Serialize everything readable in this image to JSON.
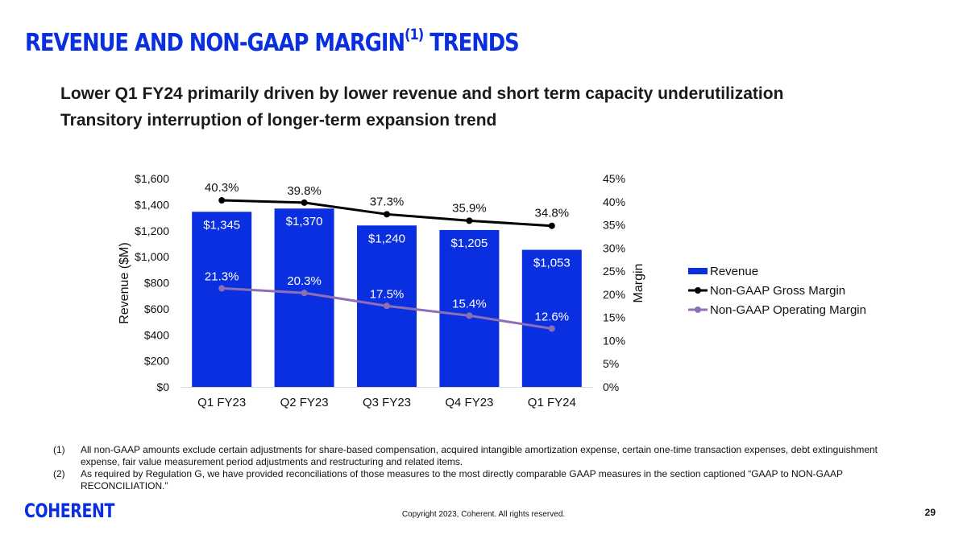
{
  "slide": {
    "title_main": "REVENUE AND NON-GAAP MARGIN",
    "title_sup": "(1)",
    "title_end": " TRENDS",
    "subtitles": [
      "Lower Q1 FY24 primarily driven by lower revenue and short term capacity underutilization",
      "Transitory interruption of longer-term expansion trend"
    ],
    "footnotes": [
      {
        "num": "(1)",
        "text": "All non-GAAP amounts exclude certain adjustments for share-based compensation, acquired intangible amortization expense, certain one-time transaction expenses, debt extinguishment expense, fair value measurement period adjustments and restructuring and related items."
      },
      {
        "num": "(2)",
        "text": "As required by Regulation G, we have provided reconciliations of those measures to the most directly comparable GAAP measures in the section captioned “GAAP to NON-GAAP RECONCILIATION.”"
      }
    ],
    "logo_text": "COHERENT",
    "copyright": "Copyright 2023, Coherent. All rights reserved.",
    "page_number": "29",
    "brand_color": "#0A2FE0"
  },
  "chart_data": {
    "type": "bar",
    "categories": [
      "Q1 FY23",
      "Q2 FY23",
      "Q3 FY23",
      "Q4 FY23",
      "Q1 FY24"
    ],
    "series": [
      {
        "name": "Revenue",
        "type": "bar",
        "axis": "left",
        "values": [
          1345,
          1370,
          1240,
          1205,
          1053
        ],
        "labels": [
          "$1,345",
          "$1,370",
          "$1,240",
          "$1,205",
          "$1,053"
        ],
        "color": "#0A2FE0"
      },
      {
        "name": "Non-GAAP Gross Margin",
        "type": "line",
        "axis": "right",
        "values": [
          40.3,
          39.8,
          37.3,
          35.9,
          34.8
        ],
        "labels": [
          "40.3%",
          "39.8%",
          "37.3%",
          "35.9%",
          "34.8%"
        ],
        "color": "#000000"
      },
      {
        "name": "Non-GAAP Operating Margin",
        "type": "line",
        "axis": "right",
        "values": [
          21.3,
          20.3,
          17.5,
          15.4,
          12.6
        ],
        "labels": [
          "21.3%",
          "20.3%",
          "17.5%",
          "15.4%",
          "12.6%"
        ],
        "color": "#8E6FB5"
      }
    ],
    "ylabel": "Revenue ($M)",
    "y2label": "Margin",
    "ylim": [
      0,
      1600
    ],
    "y2lim": [
      0,
      45
    ],
    "yticks": [
      0,
      200,
      400,
      600,
      800,
      1000,
      1200,
      1400,
      1600
    ],
    "ytick_labels": [
      "$0",
      "$200",
      "$400",
      "$600",
      "$800",
      "$1,000",
      "$1,200",
      "$1,400",
      "$1,600"
    ],
    "y2ticks": [
      0,
      5,
      10,
      15,
      20,
      25,
      30,
      35,
      40,
      45
    ],
    "y2tick_labels": [
      "0%",
      "5%",
      "10%",
      "15%",
      "20%",
      "25%",
      "30%",
      "35%",
      "40%",
      "45%"
    ],
    "legend": "right",
    "grid": false
  }
}
